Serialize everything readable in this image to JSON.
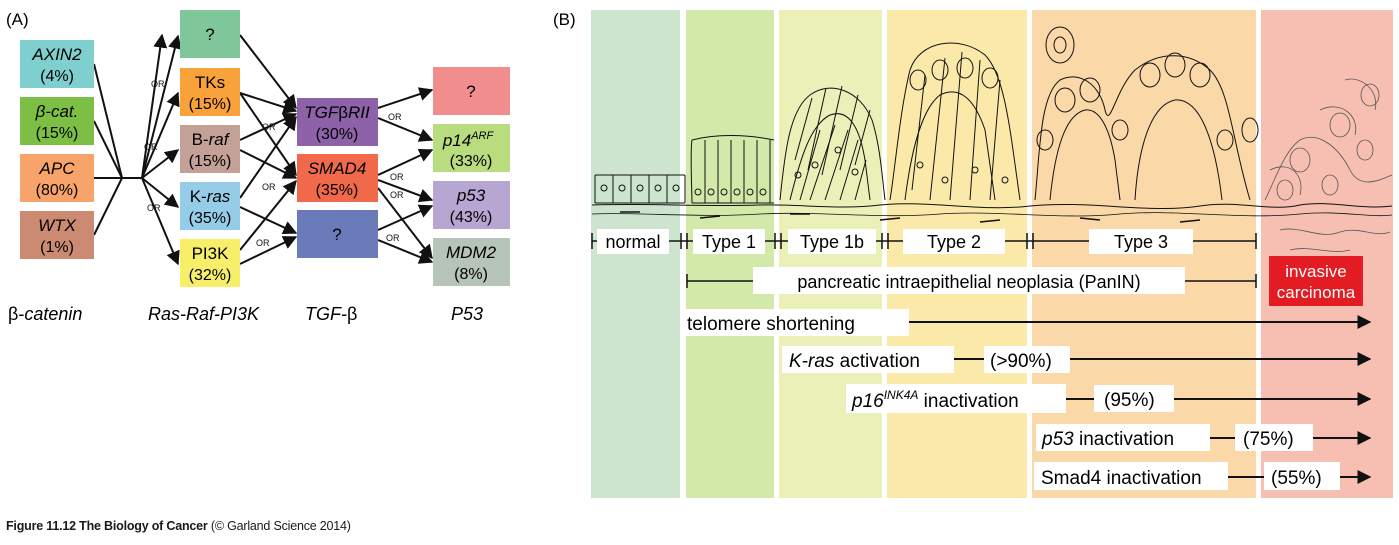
{
  "panel_a": {
    "label": "(A)",
    "or_label": "OR",
    "boxes": {
      "axin2": {
        "name": "AXIN2",
        "pct": "(4%)",
        "color": "#7fcfcf"
      },
      "bcat": {
        "name": "β-cat.",
        "pct": "(15%)",
        "color": "#7dbf45"
      },
      "apc": {
        "name": "APC",
        "pct": "(80%)",
        "color": "#f7a36a"
      },
      "wtx": {
        "name": "WTX",
        "pct": "(1%)",
        "color": "#cc8a73"
      },
      "unk1": {
        "name": "?",
        "color": "#7fc79a"
      },
      "tks": {
        "name": "TKs",
        "pct": "(15%)",
        "color": "#f9a23a"
      },
      "braf": {
        "prefix": "B-",
        "name": "raf",
        "pct": "(15%)",
        "color": "#c4a196"
      },
      "kras": {
        "prefix": "K-",
        "name": "ras",
        "pct": "(35%)",
        "color": "#95cde9"
      },
      "pi3k": {
        "name": "PI3K",
        "pct": "(32%)",
        "color": "#f7ef6a"
      },
      "tgfbrii": {
        "name_a": "TGF",
        "name_b": "β",
        "name_c": "RII",
        "pct": "(30%)",
        "color": "#8d62a8"
      },
      "smad4": {
        "name": "SMAD4",
        "pct": "(35%)",
        "color": "#f0694b"
      },
      "unk2": {
        "name": "?",
        "color": "#6b7ab8"
      },
      "unk3": {
        "name": "?",
        "color": "#f28d8d"
      },
      "p14arf": {
        "name": "p14",
        "sup": "ARF",
        "pct": "(33%)",
        "color": "#b9dc7f"
      },
      "p53": {
        "name": "p53",
        "pct": "(43%)",
        "color": "#b7a5d2"
      },
      "mdm2": {
        "name": "MDM2",
        "pct": "(8%)",
        "color": "#b7c4b9"
      }
    },
    "pathways": {
      "beta_catenin_a": "β-",
      "beta_catenin_b": "catenin",
      "ras": "Ras-Raf-PI3K",
      "tgf_a": "TGF-",
      "tgf_b": "β",
      "p53": "P53"
    }
  },
  "panel_b": {
    "label": "(B)",
    "stage_colors": [
      "#cde5cf",
      "#d3e9a9",
      "#eaf0b7",
      "#fbe9a9",
      "#fad8a8",
      "#f6bfb1"
    ],
    "stages": [
      "normal",
      "Type 1",
      "Type 1b",
      "Type 2",
      "Type 3"
    ],
    "panin": "pancreatic intraepithelial neoplasia (PanIN)",
    "invasive_a": "invasive",
    "invasive_b": "carcinoma",
    "invasive_color": "#e31b23",
    "events": {
      "telomere": "telomere shortening",
      "kras_a": "K-ras",
      "kras_b": " activation",
      "kras_pct": "(>90%)",
      "p16_a": "p16",
      "p16_sup": "INK4A",
      "p16_b": " inactivation",
      "p16_pct": "(95%)",
      "p53_a": "p53",
      "p53_b": " inactivation",
      "p53_pct": "(75%)",
      "smad4": "Smad4 inactivation",
      "smad4_pct": "(55%)"
    }
  },
  "caption": {
    "bold": "Figure 11.12  The Biology of Cancer",
    "rest": " (© Garland Science 2014)"
  }
}
